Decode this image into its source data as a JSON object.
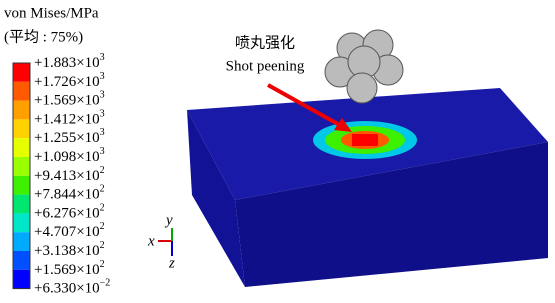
{
  "legend": {
    "title": "von Mises/MPa",
    "subtitle": "(平均 : 75%)",
    "labels": [
      {
        "mantissa": "+1.883×10",
        "exponent": "3"
      },
      {
        "mantissa": "+1.726×10",
        "exponent": "3"
      },
      {
        "mantissa": "+1.569×10",
        "exponent": "3"
      },
      {
        "mantissa": "+1.412×10",
        "exponent": "3"
      },
      {
        "mantissa": "+1.255×10",
        "exponent": "3"
      },
      {
        "mantissa": "+1.098×10",
        "exponent": "3"
      },
      {
        "mantissa": "+9.413×10",
        "exponent": "2"
      },
      {
        "mantissa": "+7.844×10",
        "exponent": "2"
      },
      {
        "mantissa": "+6.276×10",
        "exponent": "2"
      },
      {
        "mantissa": "+4.707×10",
        "exponent": "2"
      },
      {
        "mantissa": "+3.138×10",
        "exponent": "2"
      },
      {
        "mantissa": "+1.569×10",
        "exponent": "2"
      },
      {
        "mantissa": "+6.330×10",
        "exponent": "−2"
      }
    ],
    "colors": [
      "#ff0000",
      "#ff5a00",
      "#ffa000",
      "#ffd200",
      "#e6ff00",
      "#9aff00",
      "#3cf000",
      "#00e66e",
      "#00e6c8",
      "#00aaff",
      "#0050ff",
      "#0000ff"
    ]
  },
  "annotation": {
    "chinese": "喷丸强化",
    "english": "Shot peening"
  },
  "axes": {
    "x": "x",
    "y": "y",
    "z": "z"
  }
}
